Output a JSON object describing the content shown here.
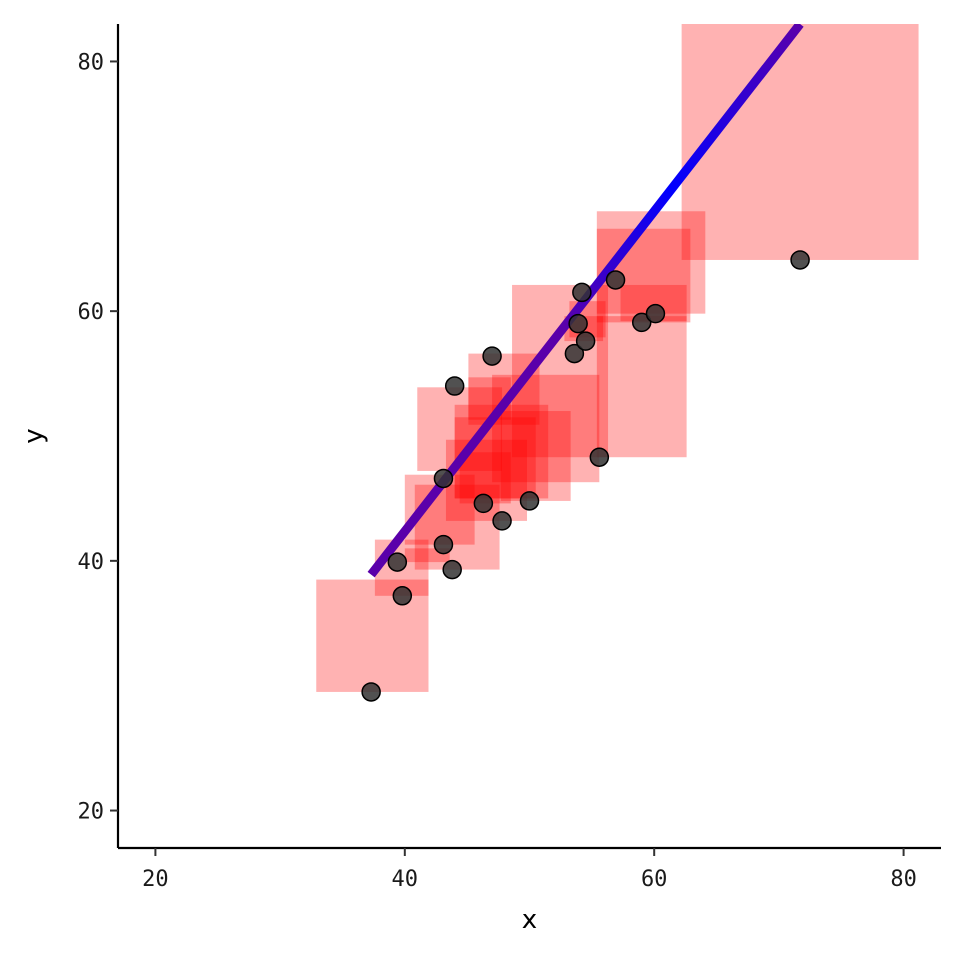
{
  "chart_data": {
    "type": "scatter",
    "title": "",
    "xlabel": "x",
    "ylabel": "y",
    "xlim": [
      17,
      83
    ],
    "ylim": [
      17,
      83
    ],
    "x_ticks": [
      20,
      40,
      60,
      80
    ],
    "y_ticks": [
      20,
      40,
      60,
      80
    ],
    "grid": false,
    "legend": "none",
    "colors": {
      "point_fill": "#333333",
      "point_stroke": "#000000",
      "rect_fill": "#ff0000",
      "line_start": "#0000ff",
      "line_end": "#5a00aa"
    },
    "points": [
      {
        "x": 37.3,
        "y": 29.5
      },
      {
        "x": 39.4,
        "y": 39.9
      },
      {
        "x": 39.8,
        "y": 37.2
      },
      {
        "x": 43.1,
        "y": 41.3
      },
      {
        "x": 43.1,
        "y": 46.6
      },
      {
        "x": 43.8,
        "y": 39.3
      },
      {
        "x": 44.0,
        "y": 54.0
      },
      {
        "x": 46.3,
        "y": 44.6
      },
      {
        "x": 47.0,
        "y": 56.4
      },
      {
        "x": 47.8,
        "y": 43.2
      },
      {
        "x": 50.0,
        "y": 44.8
      },
      {
        "x": 53.6,
        "y": 56.6
      },
      {
        "x": 53.9,
        "y": 59.0
      },
      {
        "x": 54.2,
        "y": 61.5
      },
      {
        "x": 54.5,
        "y": 57.6
      },
      {
        "x": 55.6,
        "y": 48.3
      },
      {
        "x": 56.9,
        "y": 62.5
      },
      {
        "x": 59.0,
        "y": 59.1
      },
      {
        "x": 60.1,
        "y": 59.8
      },
      {
        "x": 71.7,
        "y": 64.1
      }
    ],
    "rects": [
      {
        "xmin": 32.9,
        "xmax": 41.9,
        "ymin": 29.5,
        "ymax": 38.5
      },
      {
        "xmin": 37.6,
        "xmax": 41.9,
        "ymin": 37.2,
        "ymax": 41.7
      },
      {
        "xmin": 40.0,
        "xmax": 43.6,
        "ymin": 39.9,
        "ymax": 41.0
      },
      {
        "xmin": 40.0,
        "xmax": 45.6,
        "ymin": 41.3,
        "ymax": 46.9
      },
      {
        "xmin": 40.8,
        "xmax": 47.6,
        "ymin": 39.3,
        "ymax": 46.1
      },
      {
        "xmin": 41.0,
        "xmax": 47.8,
        "ymin": 47.2,
        "ymax": 53.9
      },
      {
        "xmin": 43.3,
        "xmax": 49.8,
        "ymin": 43.2,
        "ymax": 49.7
      },
      {
        "xmin": 44.4,
        "xmax": 48.5,
        "ymin": 44.6,
        "ymax": 48.7
      },
      {
        "xmin": 44.0,
        "xmax": 50.5,
        "ymin": 45.0,
        "ymax": 51.5
      },
      {
        "xmin": 44.0,
        "xmax": 51.5,
        "ymin": 45.0,
        "ymax": 52.5
      },
      {
        "xmin": 45.1,
        "xmax": 48.5,
        "ymin": 51.3,
        "ymax": 54.7
      },
      {
        "xmin": 45.1,
        "xmax": 50.8,
        "ymin": 50.9,
        "ymax": 56.6
      },
      {
        "xmin": 47.0,
        "xmax": 55.6,
        "ymin": 46.3,
        "ymax": 54.9
      },
      {
        "xmin": 47.7,
        "xmax": 53.3,
        "ymin": 44.8,
        "ymax": 52.0
      },
      {
        "xmin": 48.6,
        "xmax": 56.3,
        "ymin": 48.3,
        "ymax": 62.1
      },
      {
        "xmin": 52.8,
        "xmax": 55.9,
        "ymin": 57.6,
        "ymax": 59.6
      },
      {
        "xmin": 53.2,
        "xmax": 56.1,
        "ymin": 57.9,
        "ymax": 60.8
      },
      {
        "xmin": 55.4,
        "xmax": 62.6,
        "ymin": 48.3,
        "ymax": 59.6
      },
      {
        "xmin": 55.4,
        "xmax": 62.9,
        "ymin": 59.1,
        "ymax": 66.6
      },
      {
        "xmin": 55.4,
        "xmax": 64.1,
        "ymin": 59.8,
        "ymax": 68.0
      },
      {
        "xmin": 57.3,
        "xmax": 62.6,
        "ymin": 59.2,
        "ymax": 62.1
      },
      {
        "xmin": 62.2,
        "xmax": 81.2,
        "ymin": 64.1,
        "ymax": 83.0
      }
    ],
    "fit_line": {
      "x0": 37.3,
      "y0": 38.9,
      "x1": 71.7,
      "y1": 83.0
    }
  }
}
